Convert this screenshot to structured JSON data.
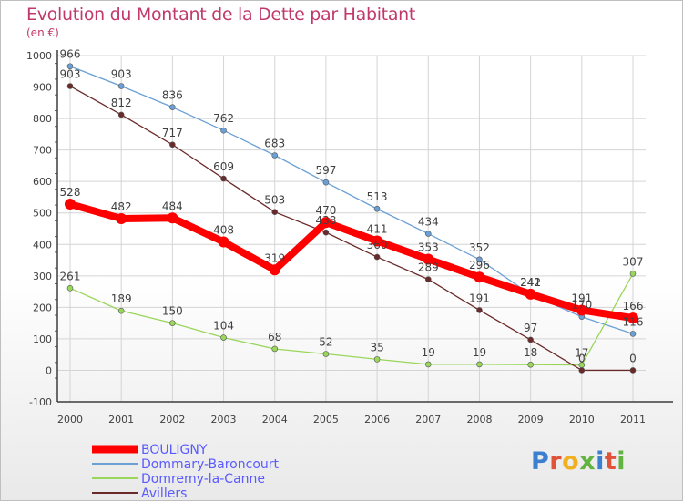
{
  "title": "Evolution du Montant de la Dette par Habitant",
  "unit": "(en €)",
  "brand": "Proxiti",
  "colors": {
    "title": "#c0396a",
    "grid": "#d4d4d4",
    "axis": "#3d3d3d",
    "label": "#404040",
    "tick_mark": "#b0306a"
  },
  "chart_data": {
    "type": "line",
    "title": "Evolution du Montant de la Dette par Habitant",
    "ylabel": "(en €)",
    "xlabel": "",
    "x": [
      2000,
      2001,
      2002,
      2003,
      2004,
      2005,
      2006,
      2007,
      2008,
      2009,
      2010,
      2011
    ],
    "ylim": [
      -100,
      1000
    ],
    "yticks": [
      -100,
      0,
      100,
      200,
      300,
      400,
      500,
      600,
      700,
      800,
      900,
      1000
    ],
    "grid": true,
    "legend": "bottom-left",
    "series": [
      {
        "name": "BOULIGNY",
        "color": "#ff0000",
        "values": [
          528,
          482,
          484,
          408,
          319,
          470,
          411,
          353,
          296,
          242,
          191,
          166
        ]
      },
      {
        "name": "Dommary-Baroncourt",
        "color": "#6aa0d6",
        "values": [
          966,
          903,
          836,
          762,
          683,
          597,
          513,
          434,
          352,
          241,
          170,
          116
        ]
      },
      {
        "name": "Domremy-la-Canne",
        "color": "#99d65a",
        "values": [
          261,
          189,
          150,
          104,
          68,
          52,
          35,
          19,
          19,
          18,
          17,
          307
        ]
      },
      {
        "name": "Avillers",
        "color": "#6b2a2a",
        "values": [
          903,
          812,
          717,
          609,
          503,
          438,
          360,
          289,
          191,
          97,
          0,
          0
        ]
      }
    ]
  }
}
